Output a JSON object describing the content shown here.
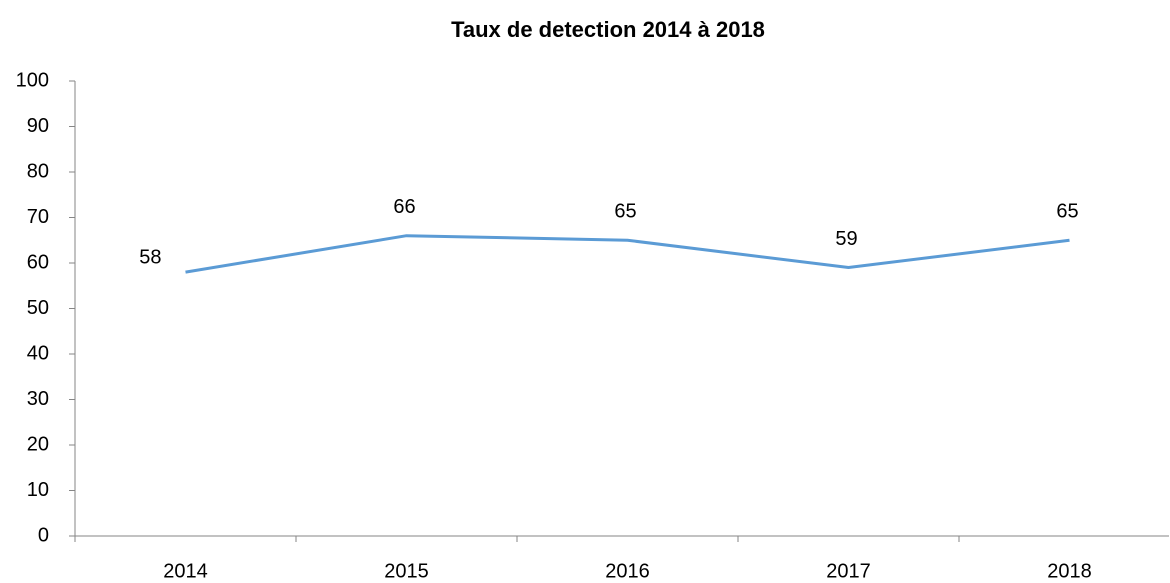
{
  "chart_data": {
    "type": "line",
    "title": "Taux de detection 2014 à 2018",
    "categories": [
      "2014",
      "2015",
      "2016",
      "2017",
      "2018"
    ],
    "values": [
      58,
      66,
      65,
      59,
      65
    ],
    "color": "#5b9bd5",
    "ylim": [
      0,
      100
    ],
    "yticks": [
      0,
      10,
      20,
      30,
      40,
      50,
      60,
      70,
      80,
      90,
      100
    ],
    "grid": false
  }
}
